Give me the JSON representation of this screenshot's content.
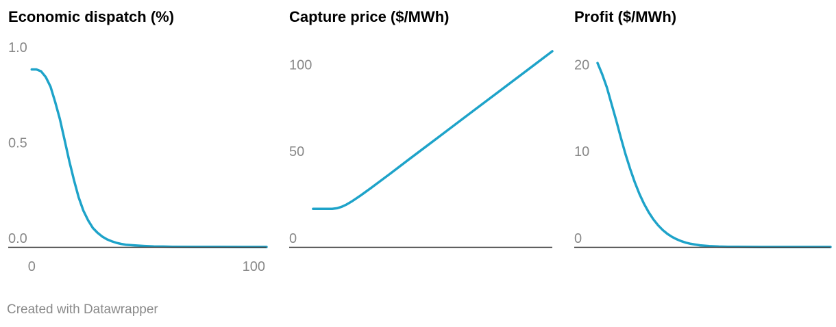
{
  "colors": {
    "line": "#1ea3c9",
    "axis": "#333333",
    "tick": "#888888"
  },
  "footer": "Created with Datawrapper",
  "chart_data": [
    {
      "type": "line",
      "title": "Economic dispatch (%)",
      "ylim": [
        0,
        1.0
      ],
      "yticks": [
        {
          "v": 0,
          "label": "0.0"
        },
        {
          "v": 0.5,
          "label": "0.5"
        },
        {
          "v": 1.0,
          "label": "1.0"
        }
      ],
      "xlim": [
        -10,
        100
      ],
      "xticks": [
        {
          "v": 0,
          "label": "0"
        },
        {
          "v": 100,
          "label": "100"
        }
      ],
      "x": [
        0,
        2,
        4,
        6,
        8,
        10,
        12,
        14,
        16,
        18,
        20,
        22,
        24,
        26,
        28,
        30,
        32,
        34,
        36,
        38,
        40,
        44,
        48,
        52,
        56,
        60,
        70,
        80,
        90,
        100
      ],
      "y": [
        0.93,
        0.93,
        0.92,
        0.89,
        0.84,
        0.76,
        0.67,
        0.56,
        0.45,
        0.35,
        0.26,
        0.19,
        0.14,
        0.1,
        0.075,
        0.055,
        0.04,
        0.03,
        0.022,
        0.016,
        0.012,
        0.008,
        0.005,
        0.003,
        0.002,
        0.001,
        0.0005,
        0.0002,
        0.0001,
        0
      ]
    },
    {
      "type": "line",
      "title": "Capture price ($/MWh)",
      "ylim": [
        0,
        110
      ],
      "yticks": [
        {
          "v": 0,
          "label": "0"
        },
        {
          "v": 50,
          "label": "50"
        },
        {
          "v": 100,
          "label": "100"
        }
      ],
      "xlim": [
        -10,
        100
      ],
      "xticks": [],
      "x": [
        0,
        4,
        8,
        10,
        12,
        14,
        16,
        18,
        20,
        24,
        28,
        32,
        40,
        50,
        60,
        70,
        80,
        90,
        100
      ],
      "y": [
        22,
        22,
        22,
        22.3,
        23.2,
        24.5,
        26.1,
        27.9,
        29.8,
        33.8,
        37.9,
        42.0,
        50.4,
        60.8,
        71.2,
        81.6,
        92.0,
        102.4,
        112.8
      ]
    },
    {
      "type": "line",
      "title": "Profit ($/MWh)",
      "ylim": [
        0,
        22
      ],
      "yticks": [
        {
          "v": 0,
          "label": "0"
        },
        {
          "v": 10,
          "label": "10"
        },
        {
          "v": 20,
          "label": "20"
        }
      ],
      "xlim": [
        -10,
        100
      ],
      "xticks": [],
      "x": [
        0,
        2,
        4,
        6,
        8,
        10,
        12,
        14,
        16,
        18,
        20,
        22,
        24,
        26,
        28,
        30,
        32,
        34,
        36,
        38,
        40,
        44,
        48,
        52,
        56,
        60,
        70,
        80,
        90,
        100
      ],
      "y": [
        21.2,
        19.9,
        18.4,
        16.5,
        14.6,
        12.6,
        10.7,
        9.0,
        7.45,
        6.1,
        4.95,
        3.98,
        3.17,
        2.5,
        1.95,
        1.51,
        1.16,
        0.88,
        0.66,
        0.49,
        0.36,
        0.19,
        0.1,
        0.05,
        0.025,
        0.012,
        0.003,
        0.001,
        0.0003,
        0
      ]
    }
  ]
}
